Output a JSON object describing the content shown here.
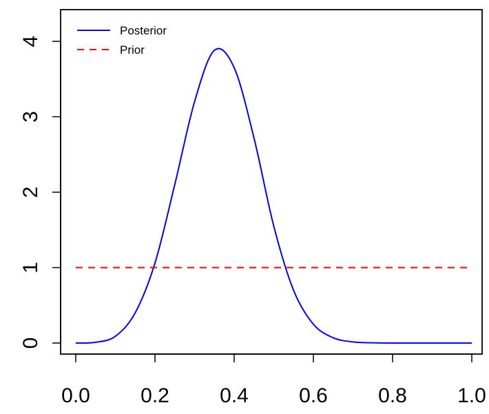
{
  "chart_data": {
    "type": "line",
    "title": "",
    "xlabel": "",
    "ylabel": "",
    "xlim": [
      0,
      1
    ],
    "ylim": [
      0,
      4.0
    ],
    "x_ticks": [
      0.0,
      0.2,
      0.4,
      0.6,
      0.8,
      1.0
    ],
    "x_tick_labels": [
      "0.0",
      "0.2",
      "0.4",
      "0.6",
      "0.8",
      "1.0"
    ],
    "y_ticks": [
      0,
      1,
      2,
      3,
      4
    ],
    "y_tick_labels": [
      "0",
      "1",
      "2",
      "3",
      "4"
    ],
    "grid": false,
    "legend_position": "top-left",
    "series": [
      {
        "name": "Posterior",
        "color": "#0000ff",
        "line_style": "solid",
        "x": [
          0.0,
          0.05,
          0.1,
          0.15,
          0.2,
          0.25,
          0.3,
          0.35,
          0.4,
          0.45,
          0.5,
          0.55,
          0.6,
          0.65,
          0.7,
          0.75,
          0.8,
          0.85,
          0.9,
          0.95,
          1.0
        ],
        "y": [
          0.0,
          0.01,
          0.09,
          0.4,
          1.06,
          2.1,
          3.2,
          3.88,
          3.65,
          2.72,
          1.55,
          0.7,
          0.25,
          0.07,
          0.015,
          0.003,
          0.0,
          0.0,
          0.0,
          0.0,
          0.0
        ]
      },
      {
        "name": "Prior",
        "color": "#ff0000",
        "line_style": "dashed",
        "x": [
          0.0,
          1.0
        ],
        "y": [
          1.0,
          1.0
        ]
      }
    ]
  }
}
